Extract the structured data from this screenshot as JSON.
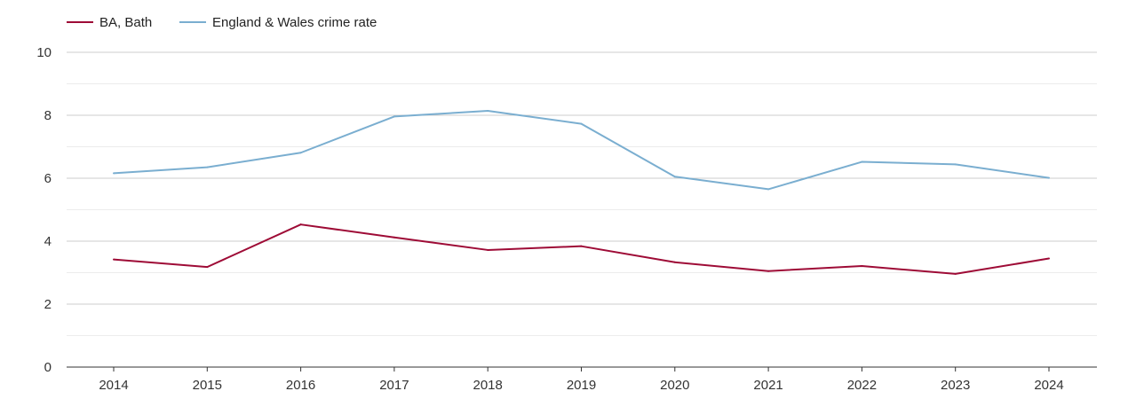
{
  "chart_data": {
    "type": "line",
    "title": "",
    "xlabel": "",
    "ylabel": "",
    "categories": [
      "2014",
      "2015",
      "2016",
      "2017",
      "2018",
      "2019",
      "2020",
      "2021",
      "2022",
      "2023",
      "2024"
    ],
    "ylim": [
      0,
      10
    ],
    "yticks": [
      "0",
      "2",
      "4",
      "6",
      "8",
      "10"
    ],
    "grid": true,
    "legend_position": "top-left",
    "series": [
      {
        "name": "BA, Bath",
        "color": "#9e0b36",
        "values": [
          3.42,
          3.18,
          4.53,
          4.12,
          3.72,
          3.84,
          3.33,
          3.05,
          3.21,
          2.96,
          3.45
        ]
      },
      {
        "name": "England & Wales crime rate",
        "color": "#7aaed0",
        "values": [
          6.16,
          6.35,
          6.81,
          7.96,
          8.14,
          7.73,
          6.05,
          5.65,
          6.52,
          6.44,
          6.01
        ]
      }
    ]
  }
}
